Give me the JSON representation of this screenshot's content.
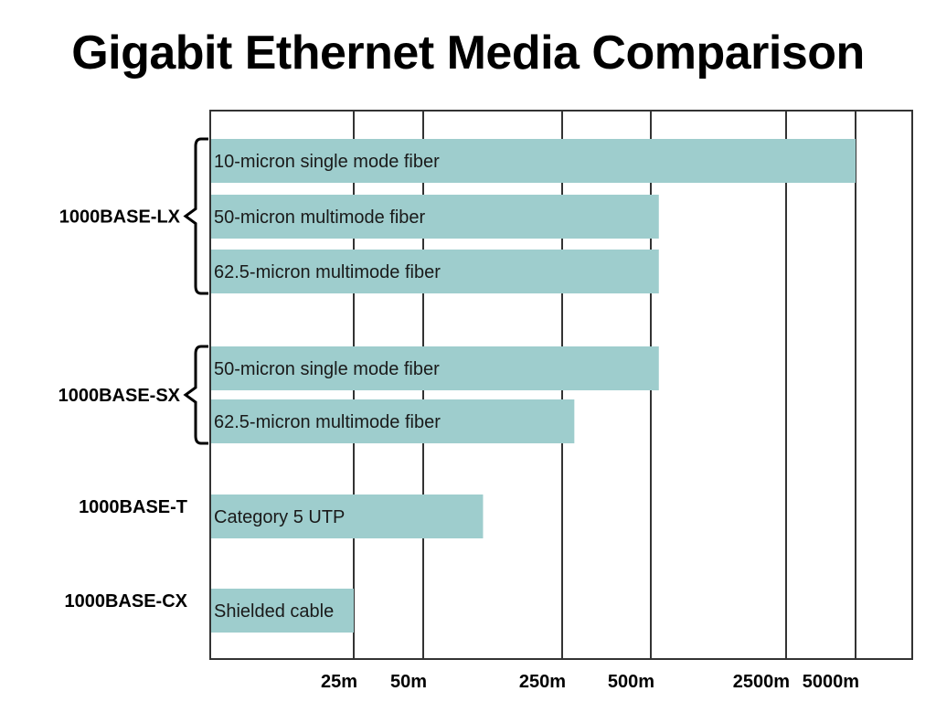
{
  "title": "Gigabit Ethernet Media Comparison",
  "colors": {
    "bar": "#9ecdcd",
    "grid": "#333333",
    "frame": "#333333"
  },
  "chart_data": {
    "type": "bar",
    "orientation": "horizontal",
    "title": "Gigabit Ethernet Media Comparison",
    "xlabel": "",
    "ylabel": "",
    "x_ticks": [
      "25m",
      "50m",
      "250m",
      "500m",
      "2500m",
      "5000m"
    ],
    "x_tick_values": [
      25,
      50,
      250,
      500,
      2500,
      5000
    ],
    "x_scale": "log",
    "grid": true,
    "groups": [
      {
        "name": "1000BASE-LX",
        "bracket": true,
        "bars": [
          {
            "label": "10-micron single mode fiber",
            "value": 5000
          },
          {
            "label": "50-micron multimode fiber",
            "value": 550
          },
          {
            "label": "62.5-micron multimode fiber",
            "value": 550
          }
        ]
      },
      {
        "name": "1000BASE-SX",
        "bracket": true,
        "bars": [
          {
            "label": "50-micron single mode fiber",
            "value": 550
          },
          {
            "label": "62.5-micron multimode fiber",
            "value": 275
          }
        ]
      },
      {
        "name": "1000BASE-T",
        "bracket": false,
        "bars": [
          {
            "label": "Category 5 UTP",
            "value": 100
          }
        ]
      },
      {
        "name": "1000BASE-CX",
        "bracket": false,
        "bars": [
          {
            "label": "Shielded cable",
            "value": 25
          }
        ]
      }
    ]
  }
}
